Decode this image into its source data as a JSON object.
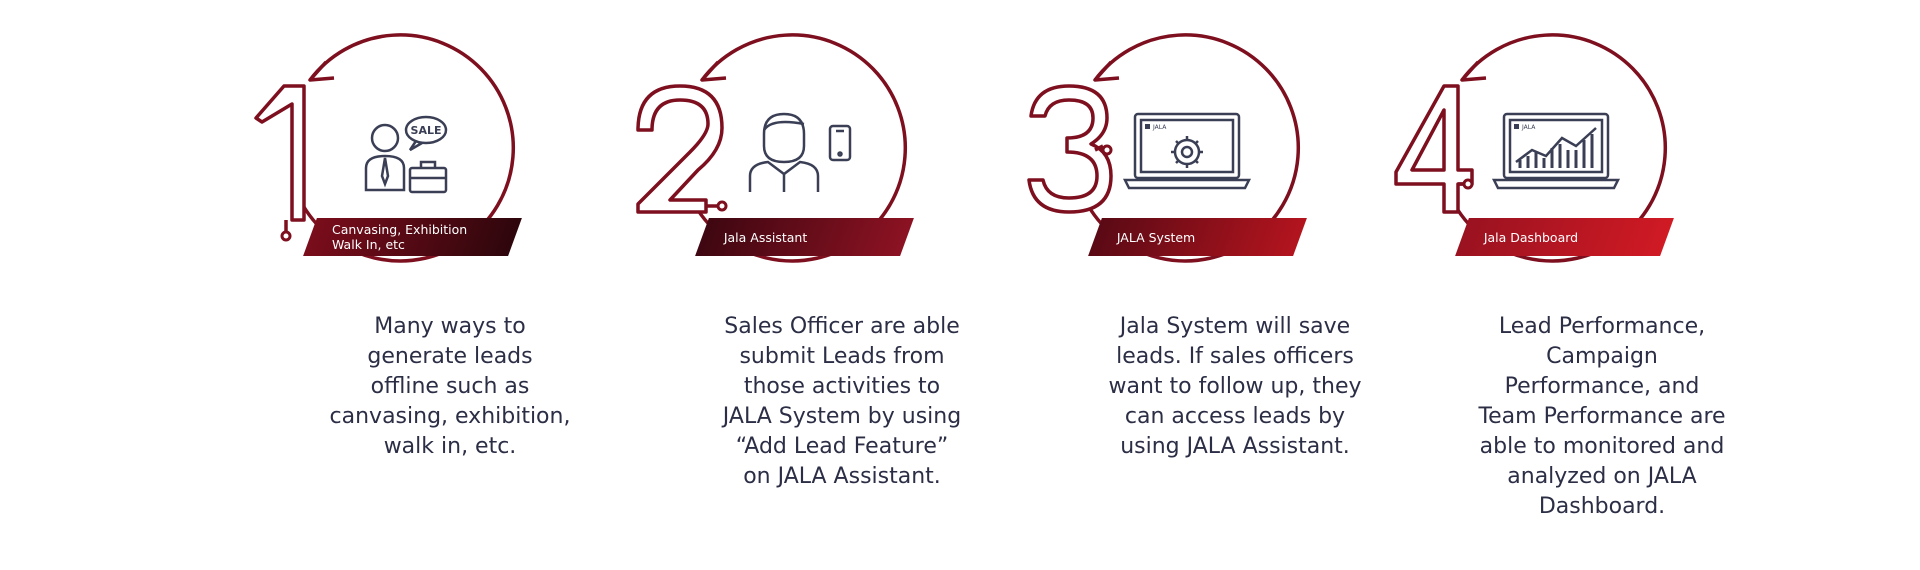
{
  "steps": [
    {
      "number": "1",
      "tag": "Canvasing, Exhibition\nWalk In, etc",
      "description": "Many ways to\ngenerate leads\noffline such as\ncanvasing, exhibition,\nwalk in, etc.",
      "icon": "salesman-with-briefcase-icon",
      "icon_text": "SALE"
    },
    {
      "number": "2",
      "tag": "Jala Assistant",
      "description": "Sales Officer are able\nsubmit Leads from\nthose activities to\nJALA System by using\n“Add Lead Feature”\non JALA Assistant.",
      "icon": "officer-with-phone-icon"
    },
    {
      "number": "3",
      "tag": "JALA System",
      "description": "Jala System will save\nleads. If sales officers\nwant to follow up, they\ncan access leads by\nusing JALA Assistant.",
      "icon": "laptop-gear-icon",
      "icon_text": "JALA"
    },
    {
      "number": "4",
      "tag": "Jala Dashboard",
      "description": "Lead Performance,\nCampaign\nPerformance, and\nTeam Performance are\nable to monitored and\nanalyzed on JALA\nDashboard.",
      "icon": "laptop-chart-icon",
      "icon_text": "JALA"
    }
  ],
  "colors": {
    "accent_dark": "#3a0810",
    "accent": "#8b1020",
    "accent_bright": "#c4161c",
    "text": "#2b2e45",
    "icon": "#3a3f55"
  }
}
